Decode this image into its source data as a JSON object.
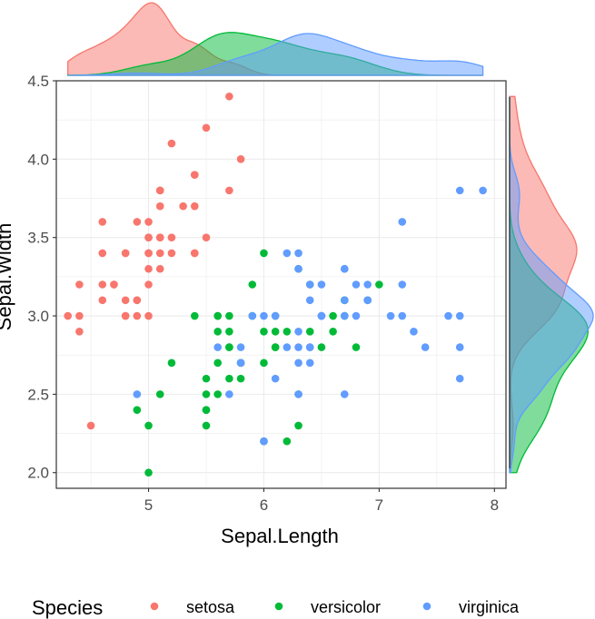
{
  "chart_data": {
    "type": "scatter",
    "title": "",
    "xlabel": "Sepal.Length",
    "ylabel": "Sepal.Width",
    "xlim": [
      4.2,
      8.1
    ],
    "ylim": [
      1.9,
      4.5
    ],
    "x_ticks": [
      "5",
      "6",
      "7",
      "8"
    ],
    "y_ticks": [
      "2.0",
      "2.5",
      "3.0",
      "3.5",
      "4.0",
      "4.5"
    ],
    "grid": true,
    "marginal_plots": "density",
    "legend": {
      "title": "Species",
      "position": "bottom",
      "entries": [
        "setosa",
        "versicolor",
        "virginica"
      ]
    },
    "series": [
      {
        "name": "setosa",
        "color": "#F8766D",
        "points": [
          [
            5.1,
            3.5
          ],
          [
            4.9,
            3.0
          ],
          [
            4.7,
            3.2
          ],
          [
            4.6,
            3.1
          ],
          [
            5.0,
            3.6
          ],
          [
            5.4,
            3.9
          ],
          [
            4.6,
            3.4
          ],
          [
            5.0,
            3.4
          ],
          [
            4.4,
            2.9
          ],
          [
            4.9,
            3.1
          ],
          [
            5.4,
            3.7
          ],
          [
            4.8,
            3.4
          ],
          [
            4.8,
            3.0
          ],
          [
            4.3,
            3.0
          ],
          [
            5.8,
            4.0
          ],
          [
            5.7,
            4.4
          ],
          [
            5.4,
            3.9
          ],
          [
            5.1,
            3.5
          ],
          [
            5.7,
            3.8
          ],
          [
            5.1,
            3.8
          ],
          [
            5.4,
            3.4
          ],
          [
            5.1,
            3.7
          ],
          [
            4.6,
            3.6
          ],
          [
            5.1,
            3.3
          ],
          [
            4.8,
            3.4
          ],
          [
            5.0,
            3.0
          ],
          [
            5.0,
            3.4
          ],
          [
            5.2,
            3.5
          ],
          [
            5.2,
            3.4
          ],
          [
            4.7,
            3.2
          ],
          [
            4.8,
            3.1
          ],
          [
            5.4,
            3.4
          ],
          [
            5.2,
            4.1
          ],
          [
            5.5,
            4.2
          ],
          [
            4.9,
            3.1
          ],
          [
            5.0,
            3.2
          ],
          [
            5.5,
            3.5
          ],
          [
            4.9,
            3.6
          ],
          [
            4.4,
            3.0
          ],
          [
            5.1,
            3.4
          ],
          [
            5.0,
            3.5
          ],
          [
            4.5,
            2.3
          ],
          [
            4.4,
            3.2
          ],
          [
            5.0,
            3.5
          ],
          [
            5.1,
            3.8
          ],
          [
            4.8,
            3.0
          ],
          [
            5.1,
            3.8
          ],
          [
            4.6,
            3.2
          ],
          [
            5.3,
            3.7
          ],
          [
            5.0,
            3.3
          ]
        ]
      },
      {
        "name": "versicolor",
        "color": "#00BA38",
        "points": [
          [
            7.0,
            3.2
          ],
          [
            6.4,
            3.2
          ],
          [
            6.9,
            3.1
          ],
          [
            5.5,
            2.3
          ],
          [
            6.5,
            2.8
          ],
          [
            5.7,
            2.8
          ],
          [
            6.3,
            3.3
          ],
          [
            4.9,
            2.4
          ],
          [
            6.6,
            2.9
          ],
          [
            5.2,
            2.7
          ],
          [
            5.0,
            2.0
          ],
          [
            5.9,
            3.0
          ],
          [
            6.0,
            2.2
          ],
          [
            6.1,
            2.9
          ],
          [
            5.6,
            2.9
          ],
          [
            6.7,
            3.1
          ],
          [
            5.6,
            3.0
          ],
          [
            5.8,
            2.7
          ],
          [
            6.2,
            2.2
          ],
          [
            5.6,
            2.5
          ],
          [
            5.9,
            3.2
          ],
          [
            6.1,
            2.8
          ],
          [
            6.3,
            2.5
          ],
          [
            6.1,
            2.8
          ],
          [
            6.4,
            2.9
          ],
          [
            6.6,
            3.0
          ],
          [
            6.8,
            2.8
          ],
          [
            6.7,
            3.0
          ],
          [
            6.0,
            2.9
          ],
          [
            5.7,
            2.6
          ],
          [
            5.5,
            2.4
          ],
          [
            5.5,
            2.4
          ],
          [
            5.8,
            2.7
          ],
          [
            6.0,
            2.7
          ],
          [
            5.4,
            3.0
          ],
          [
            6.0,
            3.4
          ],
          [
            6.7,
            3.1
          ],
          [
            6.3,
            2.3
          ],
          [
            5.6,
            3.0
          ],
          [
            5.5,
            2.5
          ],
          [
            5.5,
            2.6
          ],
          [
            6.1,
            3.0
          ],
          [
            5.8,
            2.6
          ],
          [
            5.0,
            2.3
          ],
          [
            5.6,
            2.7
          ],
          [
            5.7,
            3.0
          ],
          [
            5.7,
            2.9
          ],
          [
            6.2,
            2.9
          ],
          [
            5.1,
            2.5
          ],
          [
            5.7,
            2.8
          ]
        ]
      },
      {
        "name": "virginica",
        "color": "#619CFF",
        "points": [
          [
            6.3,
            3.3
          ],
          [
            5.8,
            2.7
          ],
          [
            7.1,
            3.0
          ],
          [
            6.3,
            2.9
          ],
          [
            6.5,
            3.0
          ],
          [
            7.6,
            3.0
          ],
          [
            4.9,
            2.5
          ],
          [
            7.3,
            2.9
          ],
          [
            6.7,
            2.5
          ],
          [
            7.2,
            3.6
          ],
          [
            6.5,
            3.2
          ],
          [
            6.4,
            2.7
          ],
          [
            6.8,
            3.0
          ],
          [
            5.7,
            2.5
          ],
          [
            5.8,
            2.8
          ],
          [
            6.4,
            3.2
          ],
          [
            6.5,
            3.0
          ],
          [
            7.7,
            3.8
          ],
          [
            7.7,
            2.6
          ],
          [
            6.0,
            2.2
          ],
          [
            6.9,
            3.2
          ],
          [
            5.6,
            2.8
          ],
          [
            7.7,
            2.8
          ],
          [
            6.3,
            2.7
          ],
          [
            6.7,
            3.3
          ],
          [
            7.2,
            3.2
          ],
          [
            6.2,
            2.8
          ],
          [
            6.1,
            3.0
          ],
          [
            6.4,
            2.8
          ],
          [
            7.2,
            3.0
          ],
          [
            7.4,
            2.8
          ],
          [
            7.9,
            3.8
          ],
          [
            6.4,
            2.8
          ],
          [
            6.3,
            2.8
          ],
          [
            6.1,
            2.6
          ],
          [
            7.7,
            3.0
          ],
          [
            6.3,
            3.4
          ],
          [
            6.4,
            3.1
          ],
          [
            6.0,
            3.0
          ],
          [
            6.9,
            3.1
          ],
          [
            6.7,
            3.1
          ],
          [
            6.9,
            3.1
          ],
          [
            5.8,
            2.7
          ],
          [
            6.8,
            3.2
          ],
          [
            6.7,
            3.3
          ],
          [
            6.7,
            3.0
          ],
          [
            6.3,
            2.5
          ],
          [
            6.5,
            3.0
          ],
          [
            6.2,
            3.4
          ],
          [
            5.9,
            3.0
          ]
        ]
      }
    ]
  }
}
